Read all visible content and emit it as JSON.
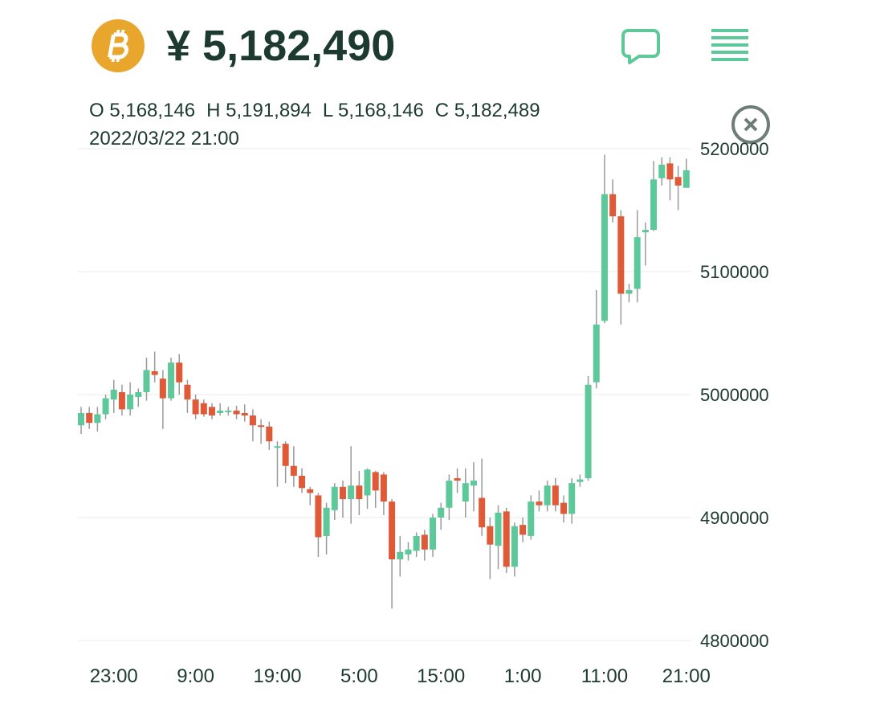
{
  "header": {
    "price": "¥ 5,182,490"
  },
  "chart_data": {
    "type": "candlestick",
    "ohlc_labels": [
      "O 5,168,146",
      "H 5,191,894",
      "L 5,168,146",
      "C 5,182,489"
    ],
    "date": "2022/03/22 21:00",
    "categories": [
      null,
      null,
      null,
      null,
      "23:00",
      null,
      null,
      null,
      null,
      null,
      null,
      null,
      null,
      null,
      "9:00",
      null,
      null,
      null,
      null,
      null,
      null,
      null,
      null,
      null,
      "19:00",
      null,
      null,
      null,
      null,
      null,
      null,
      null,
      null,
      null,
      "5:00",
      null,
      null,
      null,
      null,
      null,
      null,
      null,
      null,
      null,
      "15:00",
      null,
      null,
      null,
      null,
      null,
      null,
      null,
      null,
      null,
      "1:00",
      null,
      null,
      null,
      null,
      null,
      null,
      null,
      null,
      null,
      "11:00",
      null,
      null,
      null,
      null,
      null,
      null,
      null,
      null,
      null,
      "21:00"
    ],
    "open": [
      4975000,
      4985000,
      4977000,
      4984000,
      4996000,
      5002000,
      4988000,
      4998000,
      5002000,
      5019000,
      5013000,
      4997000,
      5026000,
      5008000,
      4996000,
      4993000,
      4990000,
      4985000,
      4986000,
      4987000,
      4985000,
      4983000,
      4975000,
      4974000,
      4957000,
      4960000,
      4942000,
      4934000,
      4923000,
      4918000,
      4885000,
      4906000,
      4925000,
      4915000,
      4926000,
      4918000,
      4937000,
      4935000,
      4913000,
      4866000,
      4870000,
      4873000,
      4886000,
      4874000,
      4900000,
      4908000,
      4932000,
      4913000,
      4926000,
      4916000,
      4893000,
      4877000,
      4905000,
      4860000,
      4894000,
      4885000,
      4913000,
      4910000,
      4926000,
      4912000,
      4903000,
      4929000,
      4932000,
      5010000,
      5060000,
      5163000,
      5145000,
      5082000,
      5086000,
      5132000,
      5134000,
      5176000,
      5188000,
      5177000,
      5168146
    ],
    "high": [
      4990000,
      4990000,
      4990000,
      5000000,
      5012000,
      5008000,
      5010000,
      5005000,
      5030000,
      5035000,
      5020000,
      5030000,
      5033000,
      5012000,
      5000000,
      4996000,
      4993000,
      4993000,
      4990000,
      4991000,
      4992000,
      4988000,
      4980000,
      4978000,
      4962000,
      4962000,
      4958000,
      4940000,
      4925000,
      4920000,
      4912000,
      4928000,
      4930000,
      4958000,
      4938000,
      4940000,
      4938000,
      4937000,
      4915000,
      4885000,
      4880000,
      4888000,
      4890000,
      4903000,
      4912000,
      4935000,
      4940000,
      4940000,
      4945000,
      4948000,
      4900000,
      4910000,
      4908000,
      4896000,
      4900000,
      4918000,
      4922000,
      4930000,
      4932000,
      4918000,
      4932000,
      4935000,
      5015000,
      5085000,
      5195000,
      5175000,
      5150000,
      5090000,
      5150000,
      5140000,
      5190000,
      5193000,
      5193000,
      5186000,
      5191894
    ],
    "low": [
      4968000,
      4972000,
      4970000,
      4980000,
      4985000,
      4983000,
      4983000,
      4990000,
      4995000,
      5010000,
      4972000,
      4995000,
      5000000,
      4985000,
      4980000,
      4982000,
      4980000,
      4983000,
      4983000,
      4980000,
      4978000,
      4962000,
      4960000,
      4955000,
      4925000,
      4928000,
      4925000,
      4920000,
      4910000,
      4868000,
      4870000,
      4898000,
      4900000,
      4895000,
      4902000,
      4907000,
      4908000,
      4902000,
      4826000,
      4852000,
      4865000,
      4868000,
      4865000,
      4868000,
      4890000,
      4898000,
      4920000,
      4900000,
      4905000,
      4885000,
      4850000,
      4858000,
      4855000,
      4852000,
      4880000,
      4882000,
      4905000,
      4905000,
      4905000,
      4896000,
      4895000,
      4925000,
      4930000,
      5005000,
      5058000,
      5140000,
      5057000,
      5075000,
      5075000,
      5105000,
      5133000,
      5170000,
      5158000,
      5150000,
      5168146
    ],
    "close": [
      4985000,
      4977000,
      4984000,
      4997000,
      5004000,
      4988000,
      5000000,
      5002000,
      5020000,
      5016000,
      4997000,
      5026000,
      5010000,
      4996000,
      4984000,
      4984000,
      4983000,
      4987000,
      4987000,
      4984000,
      4983000,
      4975000,
      4974000,
      4962000,
      4958000,
      4942000,
      4934000,
      4924000,
      4920000,
      4884000,
      4908000,
      4925000,
      4915000,
      4926000,
      4915000,
      4939000,
      4922000,
      4913000,
      4866000,
      4872000,
      4874000,
      4885000,
      4874000,
      4900000,
      4908000,
      4930000,
      4930000,
      4928000,
      4930000,
      4892000,
      4878000,
      4904000,
      4860000,
      4893000,
      4886000,
      4913000,
      4910000,
      4926000,
      4910000,
      4903000,
      4928000,
      4931000,
      5008000,
      5057000,
      5163000,
      5145000,
      5082000,
      5085000,
      5128000,
      5134000,
      5175000,
      5187000,
      5175000,
      5170000,
      5182489
    ],
    "up_color": "#5dc99b",
    "down_color": "#e05a38",
    "wick_color": "#9a9a9a",
    "ylim": [
      4800000,
      5200000
    ],
    "yticks": [
      4800000,
      4900000,
      5000000,
      5100000,
      5200000
    ],
    "grid": true
  }
}
